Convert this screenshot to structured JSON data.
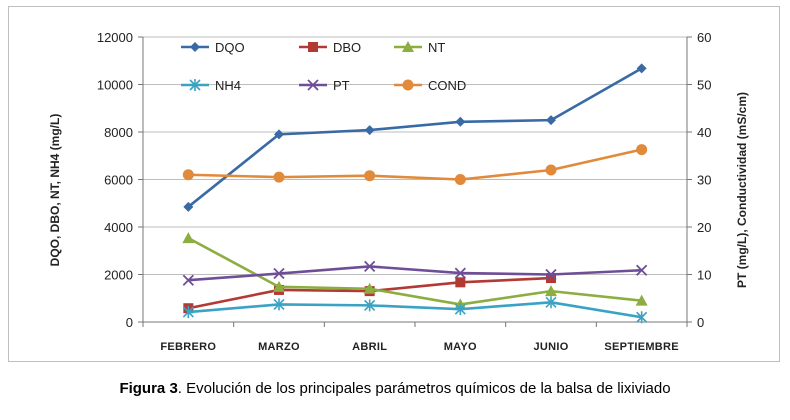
{
  "chart_data": {
    "type": "line",
    "categories": [
      "FEBRERO",
      "MARZO",
      "ABRIL",
      "MAYO",
      "JUNIO",
      "SEPTIEMBRE"
    ],
    "ylabel_left": "DQO, DBO, NT, NH4 (mg/L)",
    "ylabel_right": "PT (mg/L), Conductividad (mS/cm)",
    "ylim_left": [
      0,
      12000
    ],
    "yticks_left": [
      0,
      2000,
      4000,
      6000,
      8000,
      10000,
      12000
    ],
    "ylim_right": [
      0,
      60
    ],
    "yticks_right": [
      0,
      10,
      20,
      30,
      40,
      50,
      60
    ],
    "grid": "horizontal",
    "legend_position": "top",
    "series": [
      {
        "name": "DQO",
        "axis": "left",
        "color": "#3a6aa5",
        "marker": "diamond",
        "values": [
          4850,
          7900,
          8080,
          8430,
          8500,
          10680
        ]
      },
      {
        "name": "DBO",
        "axis": "left",
        "color": "#b23a35",
        "marker": "square",
        "values": [
          580,
          1350,
          1300,
          1670,
          1850,
          null
        ]
      },
      {
        "name": "NT",
        "axis": "left",
        "color": "#8cad3f",
        "marker": "triangle",
        "values": [
          3530,
          1480,
          1400,
          740,
          1300,
          900
        ]
      },
      {
        "name": "NH4",
        "axis": "left",
        "color": "#3aa3c4",
        "marker": "star",
        "values": [
          420,
          740,
          700,
          540,
          830,
          200
        ]
      },
      {
        "name": "PT",
        "axis": "right",
        "color": "#6f4e98",
        "marker": "x",
        "values": [
          8.8,
          10.2,
          11.7,
          10.3,
          10.0,
          10.9
        ]
      },
      {
        "name": "COND",
        "axis": "right",
        "color": "#e08a3a",
        "marker": "circle",
        "values": [
          31.0,
          30.5,
          30.8,
          30.0,
          32.0,
          36.3
        ]
      }
    ]
  },
  "caption": {
    "label": "Figura 3",
    "text": ". Evolución de los principales parámetros químicos de la balsa de lixiviado"
  }
}
